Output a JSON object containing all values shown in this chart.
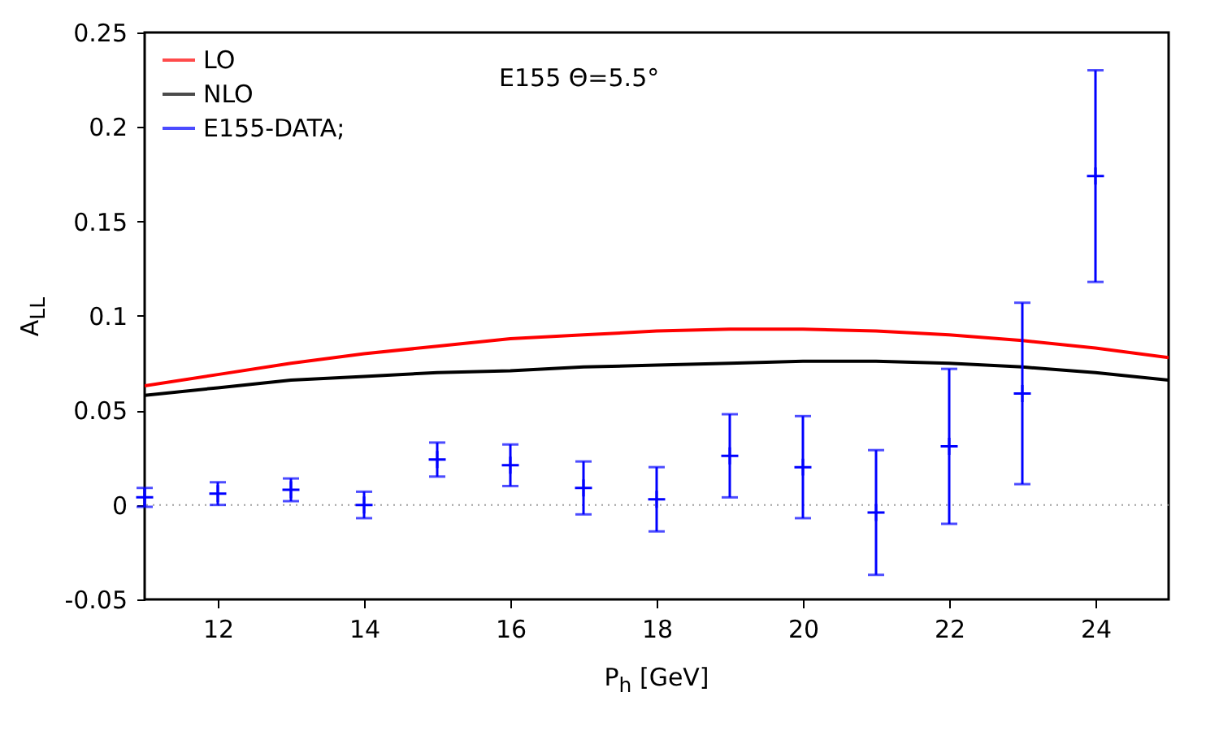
{
  "chart_data": {
    "type": "line",
    "xlabel": "P$_{h}$ [GeV]",
    "ylabel": "A$_{LL}$",
    "annotations": [
      "E155 Θ=5.5°"
    ],
    "xlim": [
      11,
      25
    ],
    "xticks": [
      12,
      14,
      16,
      18,
      20,
      22,
      24
    ],
    "ylim": [
      -0.05,
      0.25
    ],
    "yticks": [
      -0.05,
      0,
      0.05,
      0.1,
      0.15,
      0.2,
      0.25
    ],
    "legend": "top left",
    "ref_lines": [
      {
        "axis": "y",
        "value": 0,
        "line_style": "dotted",
        "color": "#a0a0a0"
      }
    ],
    "series": [
      {
        "name": "LO",
        "color": "#ff0000",
        "x": [
          11,
          12,
          13,
          14,
          15,
          16,
          17,
          18,
          19,
          20,
          21,
          22,
          23,
          24,
          25
        ],
        "values": [
          0.063,
          0.069,
          0.075,
          0.08,
          0.084,
          0.088,
          0.09,
          0.092,
          0.093,
          0.093,
          0.092,
          0.09,
          0.087,
          0.083,
          0.078
        ]
      },
      {
        "name": "NLO",
        "color": "#000000",
        "x": [
          11,
          12,
          13,
          14,
          15,
          16,
          17,
          18,
          19,
          20,
          21,
          22,
          23,
          24,
          25
        ],
        "values": [
          0.058,
          0.062,
          0.066,
          0.068,
          0.07,
          0.071,
          0.073,
          0.074,
          0.075,
          0.076,
          0.076,
          0.075,
          0.073,
          0.07,
          0.066
        ]
      },
      {
        "name": "E155-DATA;",
        "type": "scatter",
        "marker": "cross",
        "color": "#0000ff",
        "x": [
          11,
          12,
          13,
          14,
          15,
          16,
          17,
          18,
          19,
          20,
          21,
          22,
          23,
          24
        ],
        "values": [
          0.004,
          0.006,
          0.008,
          0.0,
          0.024,
          0.021,
          0.009,
          0.003,
          0.026,
          0.02,
          -0.004,
          0.031,
          0.059,
          0.174
        ],
        "errors": [
          0.005,
          0.006,
          0.006,
          0.007,
          0.009,
          0.011,
          0.014,
          0.017,
          0.022,
          0.027,
          0.033,
          0.041,
          0.048,
          0.056
        ]
      }
    ]
  }
}
